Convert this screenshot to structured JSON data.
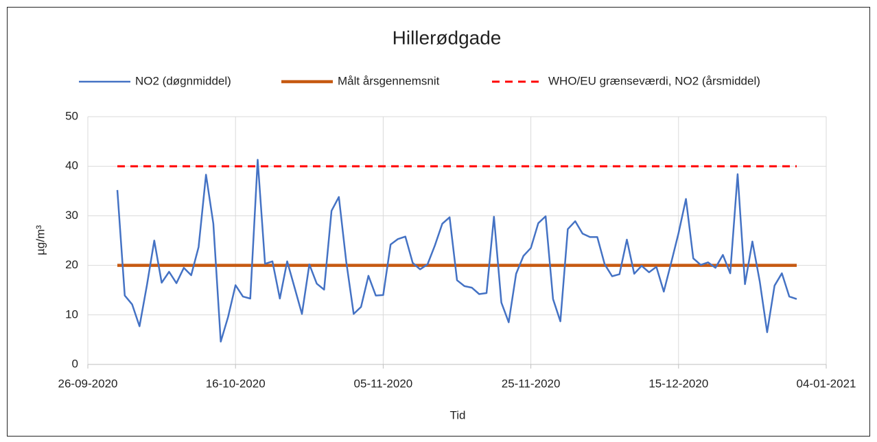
{
  "chart_data": {
    "type": "line",
    "title": "Hillerødgade",
    "xlabel": "Tid",
    "ylabel": "µg/m³",
    "x": [
      "30-09-2020",
      "01-10-2020",
      "02-10-2020",
      "03-10-2020",
      "04-10-2020",
      "05-10-2020",
      "06-10-2020",
      "07-10-2020",
      "08-10-2020",
      "09-10-2020",
      "10-10-2020",
      "11-10-2020",
      "12-10-2020",
      "13-10-2020",
      "14-10-2020",
      "15-10-2020",
      "16-10-2020",
      "17-10-2020",
      "18-10-2020",
      "19-10-2020",
      "20-10-2020",
      "21-10-2020",
      "22-10-2020",
      "23-10-2020",
      "24-10-2020",
      "25-10-2020",
      "26-10-2020",
      "27-10-2020",
      "28-10-2020",
      "29-10-2020",
      "30-10-2020",
      "31-10-2020",
      "01-11-2020",
      "02-11-2020",
      "03-11-2020",
      "04-11-2020",
      "05-11-2020",
      "06-11-2020",
      "07-11-2020",
      "08-11-2020",
      "09-11-2020",
      "10-11-2020",
      "11-11-2020",
      "12-11-2020",
      "13-11-2020",
      "14-11-2020",
      "15-11-2020",
      "16-11-2020",
      "17-11-2020",
      "18-11-2020",
      "19-11-2020",
      "20-11-2020",
      "21-11-2020",
      "22-11-2020",
      "23-11-2020",
      "24-11-2020",
      "25-11-2020",
      "26-11-2020",
      "27-11-2020",
      "28-11-2020",
      "29-11-2020",
      "30-11-2020",
      "01-12-2020",
      "02-12-2020",
      "03-12-2020",
      "04-12-2020",
      "05-12-2020",
      "06-12-2020",
      "07-12-2020",
      "08-12-2020",
      "09-12-2020",
      "10-12-2020",
      "11-12-2020",
      "12-12-2020",
      "13-12-2020",
      "14-12-2020",
      "15-12-2020",
      "16-12-2020",
      "17-12-2020",
      "18-12-2020",
      "19-12-2020",
      "20-12-2020",
      "21-12-2020",
      "22-12-2020",
      "23-12-2020",
      "24-12-2020",
      "25-12-2020",
      "26-12-2020",
      "27-12-2020",
      "28-12-2020",
      "29-12-2020",
      "30-12-2020",
      "31-12-2020"
    ],
    "series": [
      {
        "name": "NO2 (døgnmiddel)",
        "color": "#4472c4",
        "values": [
          35.2,
          13.9,
          12.1,
          7.7,
          16,
          25,
          16.5,
          18.7,
          16.4,
          19.5,
          18,
          23.7,
          38.3,
          28.4,
          4.6,
          9.6,
          16,
          13.7,
          13.3,
          41.3,
          20.3,
          20.8,
          13.3,
          20.8,
          15.5,
          10.2,
          20.2,
          16.3,
          15.1,
          31,
          33.8,
          20.7,
          10.2,
          11.6,
          17.9,
          13.9,
          14,
          24.2,
          25.3,
          25.8,
          20.5,
          19.2,
          20.2,
          24,
          28.4,
          29.7,
          17,
          15.8,
          15.5,
          14.2,
          14.4,
          29.8,
          12.5,
          8.5,
          18.3,
          21.9,
          23.5,
          28.5,
          29.9,
          13.2,
          8.7,
          27.3,
          28.9,
          26.4,
          25.7,
          25.7,
          20.2,
          17.8,
          18.2,
          25.2,
          18.3,
          19.9,
          18.6,
          19.7,
          14.7,
          20.5,
          26.5,
          33.4,
          21.4,
          20.1,
          20.6,
          19.5,
          22.1,
          18.4,
          38.4,
          16.2,
          24.8,
          16.7,
          6.5,
          15.9,
          18.4,
          13.7,
          13.2
        ]
      },
      {
        "name": "Målt årsgennemsnit",
        "color": "#c65911",
        "values": [
          20,
          20,
          20,
          20,
          20,
          20,
          20,
          20,
          20,
          20,
          20,
          20,
          20,
          20,
          20,
          20,
          20,
          20,
          20,
          20,
          20,
          20,
          20,
          20,
          20,
          20,
          20,
          20,
          20,
          20,
          20,
          20,
          20,
          20,
          20,
          20,
          20,
          20,
          20,
          20,
          20,
          20,
          20,
          20,
          20,
          20,
          20,
          20,
          20,
          20,
          20,
          20,
          20,
          20,
          20,
          20,
          20,
          20,
          20,
          20,
          20,
          20,
          20,
          20,
          20,
          20,
          20,
          20,
          20,
          20,
          20,
          20,
          20,
          20,
          20,
          20,
          20,
          20,
          20,
          20,
          20,
          20,
          20,
          20,
          20,
          20,
          20,
          20,
          20,
          20,
          20,
          20,
          20
        ]
      },
      {
        "name": "WHO/EU grænseværdi, NO2 (årsmiddel)",
        "color": "#ff0000",
        "linestyle": "dashed",
        "values": [
          40,
          40,
          40,
          40,
          40,
          40,
          40,
          40,
          40,
          40,
          40,
          40,
          40,
          40,
          40,
          40,
          40,
          40,
          40,
          40,
          40,
          40,
          40,
          40,
          40,
          40,
          40,
          40,
          40,
          40,
          40,
          40,
          40,
          40,
          40,
          40,
          40,
          40,
          40,
          40,
          40,
          40,
          40,
          40,
          40,
          40,
          40,
          40,
          40,
          40,
          40,
          40,
          40,
          40,
          40,
          40,
          40,
          40,
          40,
          40,
          40,
          40,
          40,
          40,
          40,
          40,
          40,
          40,
          40,
          40,
          40,
          40,
          40,
          40,
          40,
          40,
          40,
          40,
          40,
          40,
          40,
          40,
          40,
          40,
          40,
          40,
          40,
          40,
          40,
          40,
          40,
          40,
          40
        ]
      }
    ],
    "xlim": [
      "26-09-2020",
      "04-01-2021"
    ],
    "xticks": [
      "26-09-2020",
      "16-10-2020",
      "05-11-2020",
      "25-11-2020",
      "15-12-2020",
      "04-01-2021"
    ],
    "ylim": [
      0,
      50
    ],
    "yticks": [
      0,
      10,
      20,
      30,
      40,
      50
    ],
    "grid": true,
    "legend": "top"
  }
}
